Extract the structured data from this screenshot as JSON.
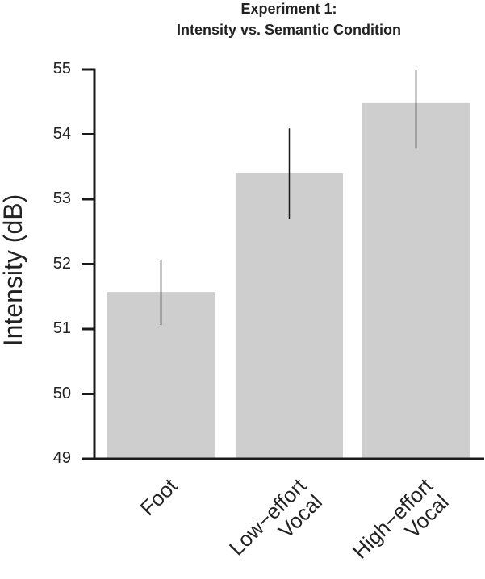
{
  "chart_data": {
    "type": "bar",
    "title": "Experiment 1:\nIntensity vs. Semantic Condition",
    "title_lines": [
      "Experiment 1:",
      "Intensity vs. Semantic Condition"
    ],
    "xlabel": "",
    "ylabel": "Intensity (dB)",
    "categories": [
      "Foot",
      "Low-effort Vocal",
      "High-effort Vocal"
    ],
    "category_label_lines": [
      [
        "Foot"
      ],
      [
        "Low−effort",
        "Vocal"
      ],
      [
        "High−effort",
        "Vocal"
      ]
    ],
    "values": [
      51.57,
      53.4,
      54.48
    ],
    "error_bars": {
      "lower": [
        51.06,
        52.7,
        53.78
      ],
      "upper": [
        52.07,
        54.09,
        54.99
      ]
    },
    "ylim": [
      49,
      55
    ],
    "yticks": [
      49,
      50,
      51,
      52,
      53,
      54,
      55
    ],
    "grid": false,
    "legend": null,
    "bar_color": "#cdcecd",
    "errorbar_color": "#1a1a1a",
    "axis_color": "#1a1a1a"
  }
}
